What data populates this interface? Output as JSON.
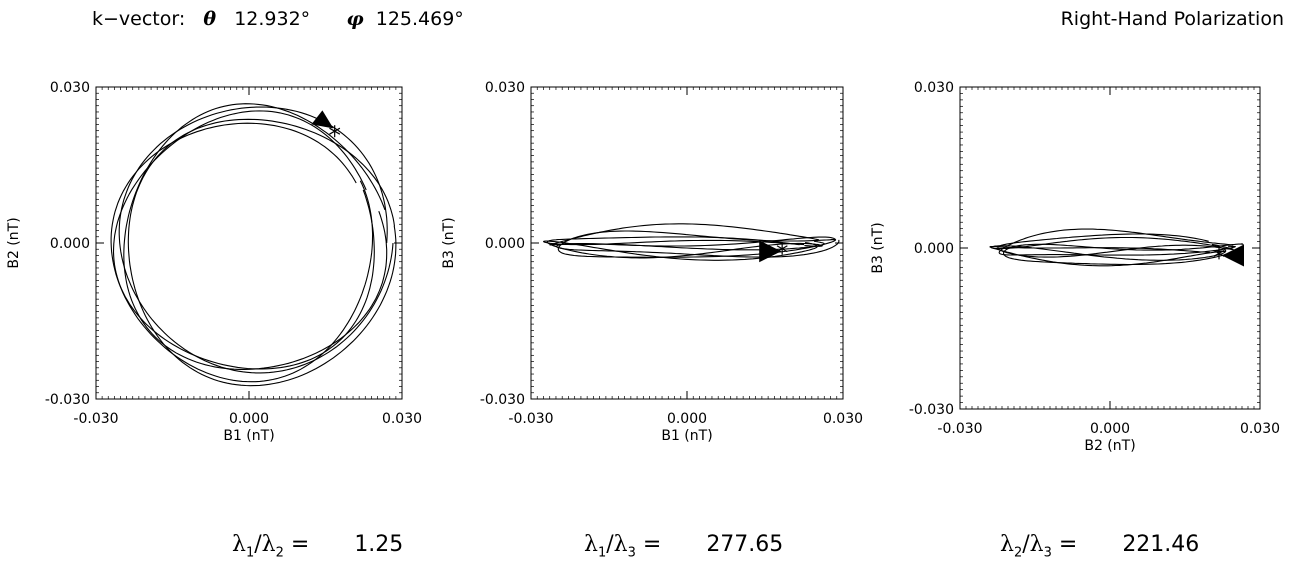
{
  "header": {
    "k_label": "k−vector:",
    "theta_symbol": "θ",
    "theta_value": "12.932°",
    "phi_symbol": "φ",
    "phi_value": "125.469°",
    "polarization": "Right-Hand Polarization"
  },
  "ratios": [
    {
      "num": "1",
      "den": "2",
      "eq": " =",
      "value": "1.25"
    },
    {
      "num": "1",
      "den": "3",
      "eq": " =",
      "value": "277.65"
    },
    {
      "num": "2",
      "den": "3",
      "eq": " =",
      "value": "221.46"
    }
  ],
  "chart_data": [
    {
      "type": "line",
      "title": "",
      "xlabel": "B1 (nT)",
      "ylabel": "B2 (nT)",
      "xlim": [
        -0.03,
        0.03
      ],
      "ylim": [
        -0.03,
        0.03
      ],
      "xticks": [
        "-0.030",
        "0.000",
        "0.030"
      ],
      "yticks": [
        "-0.030",
        "0.000",
        "0.030"
      ],
      "grid": false,
      "hodogram": {
        "cx": 0.0005,
        "cy": 0.0,
        "rx": 0.0265,
        "ry": 0.0258,
        "loops": 5,
        "jitter": 0.0021
      },
      "start_marker": {
        "x": 0.0168,
        "y": 0.0215
      },
      "arrow": {
        "x": 0.0142,
        "y": 0.0232
      }
    },
    {
      "type": "line",
      "title": "",
      "xlabel": "B1 (nT)",
      "ylabel": "B3 (nT)",
      "xlim": [
        -0.03,
        0.03
      ],
      "ylim": [
        -0.03,
        0.03
      ],
      "xticks": [
        "-0.030",
        "0.000",
        "0.030"
      ],
      "yticks": [
        "-0.030",
        "0.000",
        "0.030"
      ],
      "grid": false,
      "hodogram": {
        "cx": 0.0005,
        "cy": -0.0002,
        "rx": 0.027,
        "ry": 0.0017,
        "loops": 5,
        "jitter": 0.0018
      },
      "start_marker": {
        "x": 0.0183,
        "y": -0.0011
      },
      "arrow": {
        "x": 0.0158,
        "y": -0.0016
      }
    },
    {
      "type": "line",
      "title": "",
      "xlabel": "B2 (nT)",
      "ylabel": "B3 (nT)",
      "xlim": [
        -0.03,
        0.03
      ],
      "ylim": [
        -0.03,
        0.03
      ],
      "xticks": [
        "-0.030",
        "0.000",
        "0.030"
      ],
      "yticks": [
        "-0.030",
        "0.000",
        "0.030"
      ],
      "grid": false,
      "hodogram": {
        "cx": 0.001,
        "cy": -0.0002,
        "rx": 0.024,
        "ry": 0.0016,
        "loops": 5,
        "jitter": 0.0017
      },
      "start_marker": {
        "x": 0.0218,
        "y": -0.001
      },
      "arrow": {
        "x": 0.025,
        "y": -0.0014
      }
    }
  ]
}
